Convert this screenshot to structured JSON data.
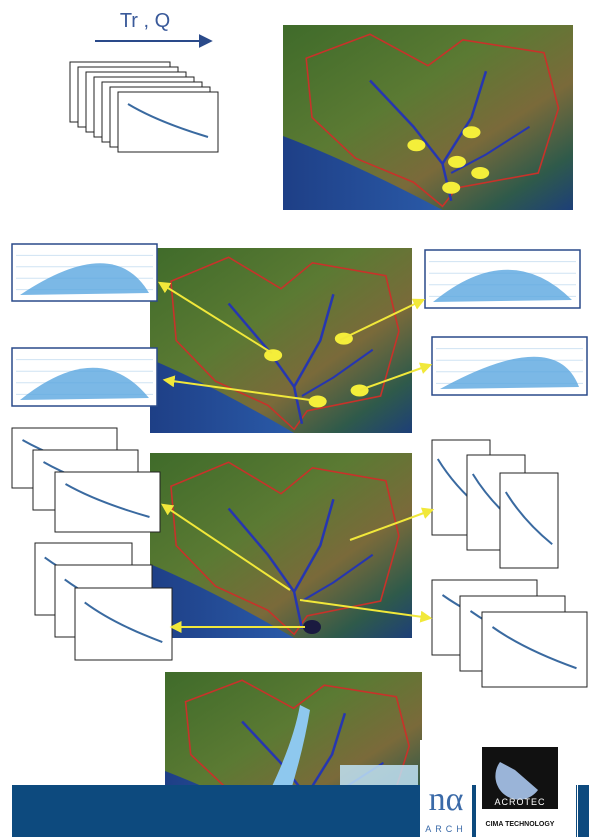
{
  "header": {
    "label": "Tr , Q"
  },
  "logos": {
    "partner": "ARCH",
    "acrotec": "ACROTEC",
    "cima": "CIMA TECHNOLOGY"
  }
}
